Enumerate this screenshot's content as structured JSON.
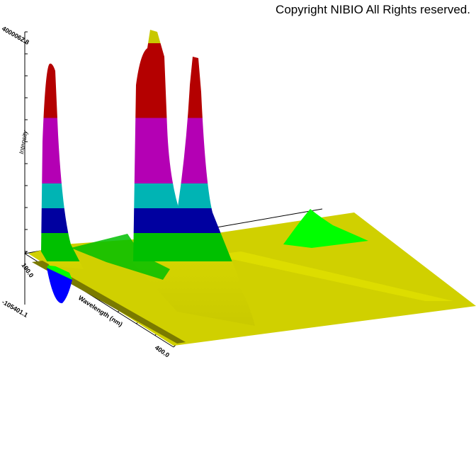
{
  "copyright": "Copyright NIBIO All Rights reserved.",
  "chart_data": {
    "type": "area",
    "subtype": "3d-surface",
    "xlabel": "Wavelength (nm)",
    "zlabel": "Intensity",
    "x_ticks": {
      "start": "190.0",
      "end": "400.0"
    },
    "z_ticks": {
      "max": "4000062.8",
      "min": "-105401.1"
    },
    "xlim": [
      190.0,
      400.0
    ],
    "zlim": [
      -105401.1,
      4000062.8
    ],
    "grid": false,
    "colormap": [
      "#0000ff",
      "#00c000",
      "#00ff00",
      "#d4d400",
      "#0000a0",
      "#00b4b4",
      "#b400b4",
      "#b40000"
    ],
    "peaks": [
      {
        "x": 200,
        "z": 3200000
      },
      {
        "x": 240,
        "z": 4000000
      },
      {
        "x": 265,
        "z": 3400000
      },
      {
        "x": 375,
        "z": 600000
      }
    ]
  }
}
